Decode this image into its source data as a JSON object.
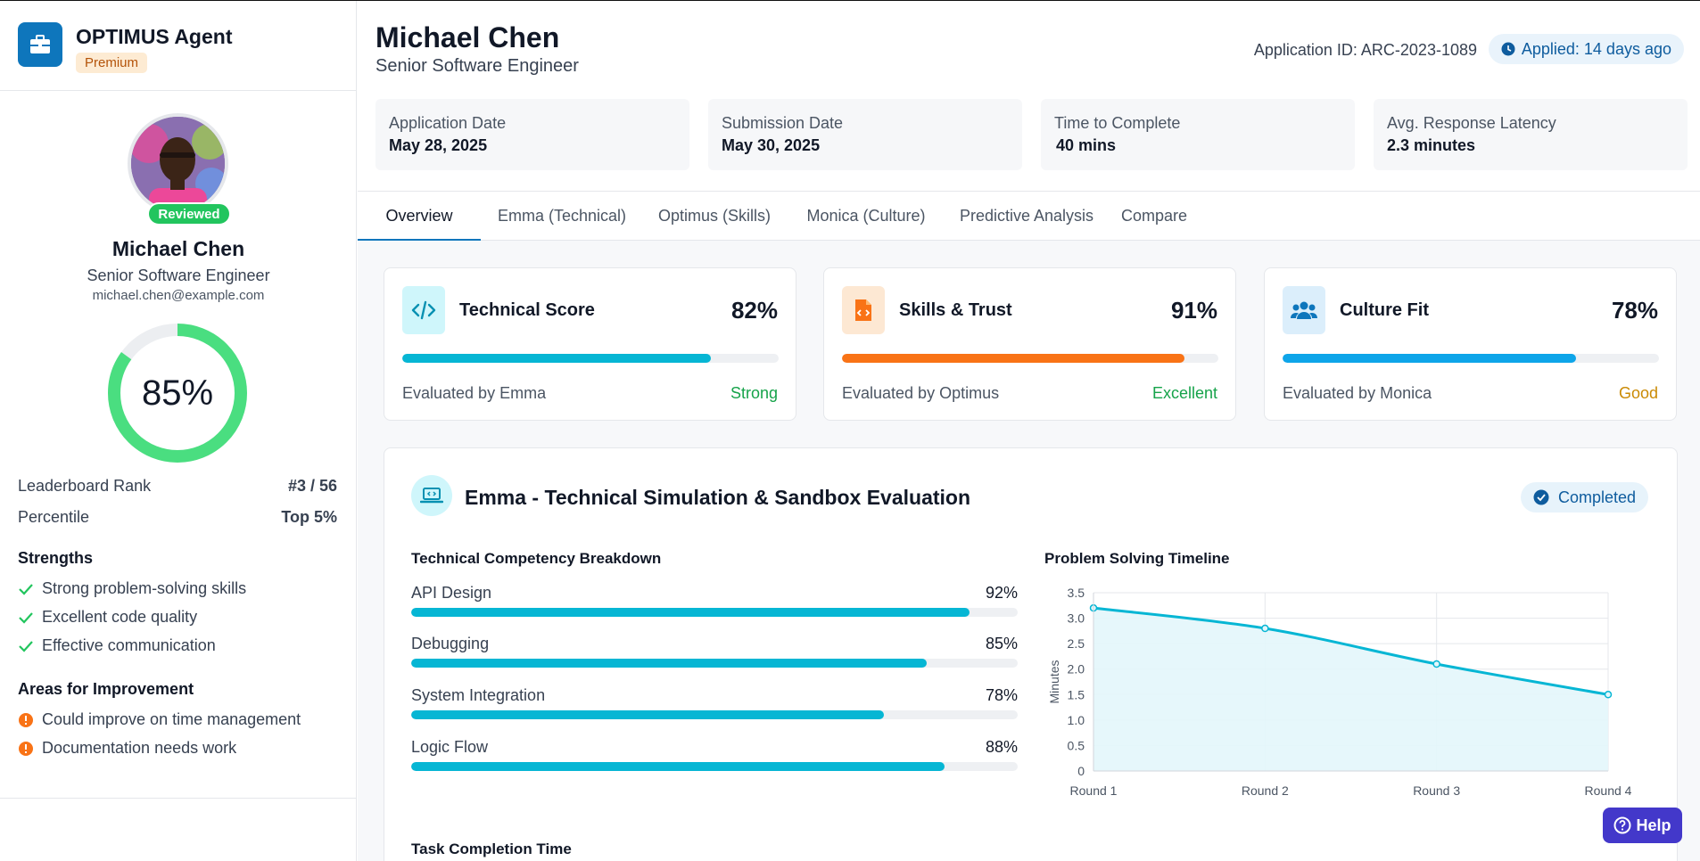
{
  "brand": {
    "name": "OPTIMUS Agent",
    "badge": "Premium",
    "color": "#0e76bc"
  },
  "profile": {
    "name": "Michael Chen",
    "role": "Senior Software Engineer",
    "email": "michael.chen@example.com",
    "status": "Reviewed",
    "overall_score_label": "85%",
    "overall_score": 0.85
  },
  "ranking": {
    "rank_label": "Leaderboard Rank",
    "rank_value": "#3 / 56",
    "percentile_label": "Percentile",
    "percentile_value": "Top 5%"
  },
  "strengths": {
    "title": "Strengths",
    "items": [
      "Strong problem-solving skills",
      "Excellent code quality",
      "Effective communication"
    ]
  },
  "improvements": {
    "title": "Areas for Improvement",
    "items": [
      "Could improve on time management",
      "Documentation needs work"
    ]
  },
  "header": {
    "name": "Michael Chen",
    "role": "Senior Software Engineer",
    "application_id": "Application ID: ARC-2023-1089",
    "applied": "Applied: 14 days ago"
  },
  "stats": [
    {
      "label": "Application Date",
      "value": "May 28, 2025"
    },
    {
      "label": "Submission Date",
      "value": "May 30, 2025"
    },
    {
      "label": "Time to Complete",
      "value": "40 mins"
    },
    {
      "label": "Avg. Response Latency",
      "value": "2.3 minutes"
    }
  ],
  "tabs": [
    "Overview",
    "Emma (Technical)",
    "Optimus (Skills)",
    "Monica (Culture)",
    "Predictive Analysis",
    "Compare"
  ],
  "score_cards": [
    {
      "title": "Technical Score",
      "score_label": "82%",
      "score": 0.82,
      "evaluator": "Evaluated by Emma",
      "grade": "Strong",
      "bar_color": "#06b6d4",
      "grade_color": "#16a34a"
    },
    {
      "title": "Skills & Trust",
      "score_label": "91%",
      "score": 0.91,
      "evaluator": "Evaluated by Optimus",
      "grade": "Excellent",
      "bar_color": "#f97316",
      "grade_color": "#16a34a"
    },
    {
      "title": "Culture Fit",
      "score_label": "78%",
      "score": 0.78,
      "evaluator": "Evaluated by Monica",
      "grade": "Good",
      "bar_color": "#0ea5e9",
      "grade_color": "#ca8a04"
    }
  ],
  "emma_section": {
    "title": "Emma - Technical Simulation & Sandbox Evaluation",
    "status": "Completed",
    "breakdown_title": "Technical Competency Breakdown",
    "breakdown": [
      {
        "label": "API Design",
        "pct_label": "92%",
        "pct": 0.92
      },
      {
        "label": "Debugging",
        "pct_label": "85%",
        "pct": 0.85
      },
      {
        "label": "System Integration",
        "pct_label": "78%",
        "pct": 0.78
      },
      {
        "label": "Logic Flow",
        "pct_label": "88%",
        "pct": 0.88
      }
    ],
    "timeline_title": "Problem Solving Timeline",
    "task_time_title": "Task Completion Time"
  },
  "chart_data": {
    "type": "area",
    "title": "Problem Solving Timeline",
    "categories": [
      "Round 1",
      "Round 2",
      "Round 3",
      "Round 4"
    ],
    "values": [
      3.2,
      2.8,
      2.1,
      1.5
    ],
    "ylabel": "Minutes",
    "xlabel": "",
    "ylim": [
      0,
      3.5
    ],
    "yticks": [
      "3.5",
      "3.0",
      "2.5",
      "2.0",
      "1.5",
      "1.0",
      "0.5",
      "0"
    ],
    "grid": true,
    "line_color": "#06b6d4",
    "fill_color": "#e3f6fb"
  },
  "help": {
    "label": "Help"
  }
}
